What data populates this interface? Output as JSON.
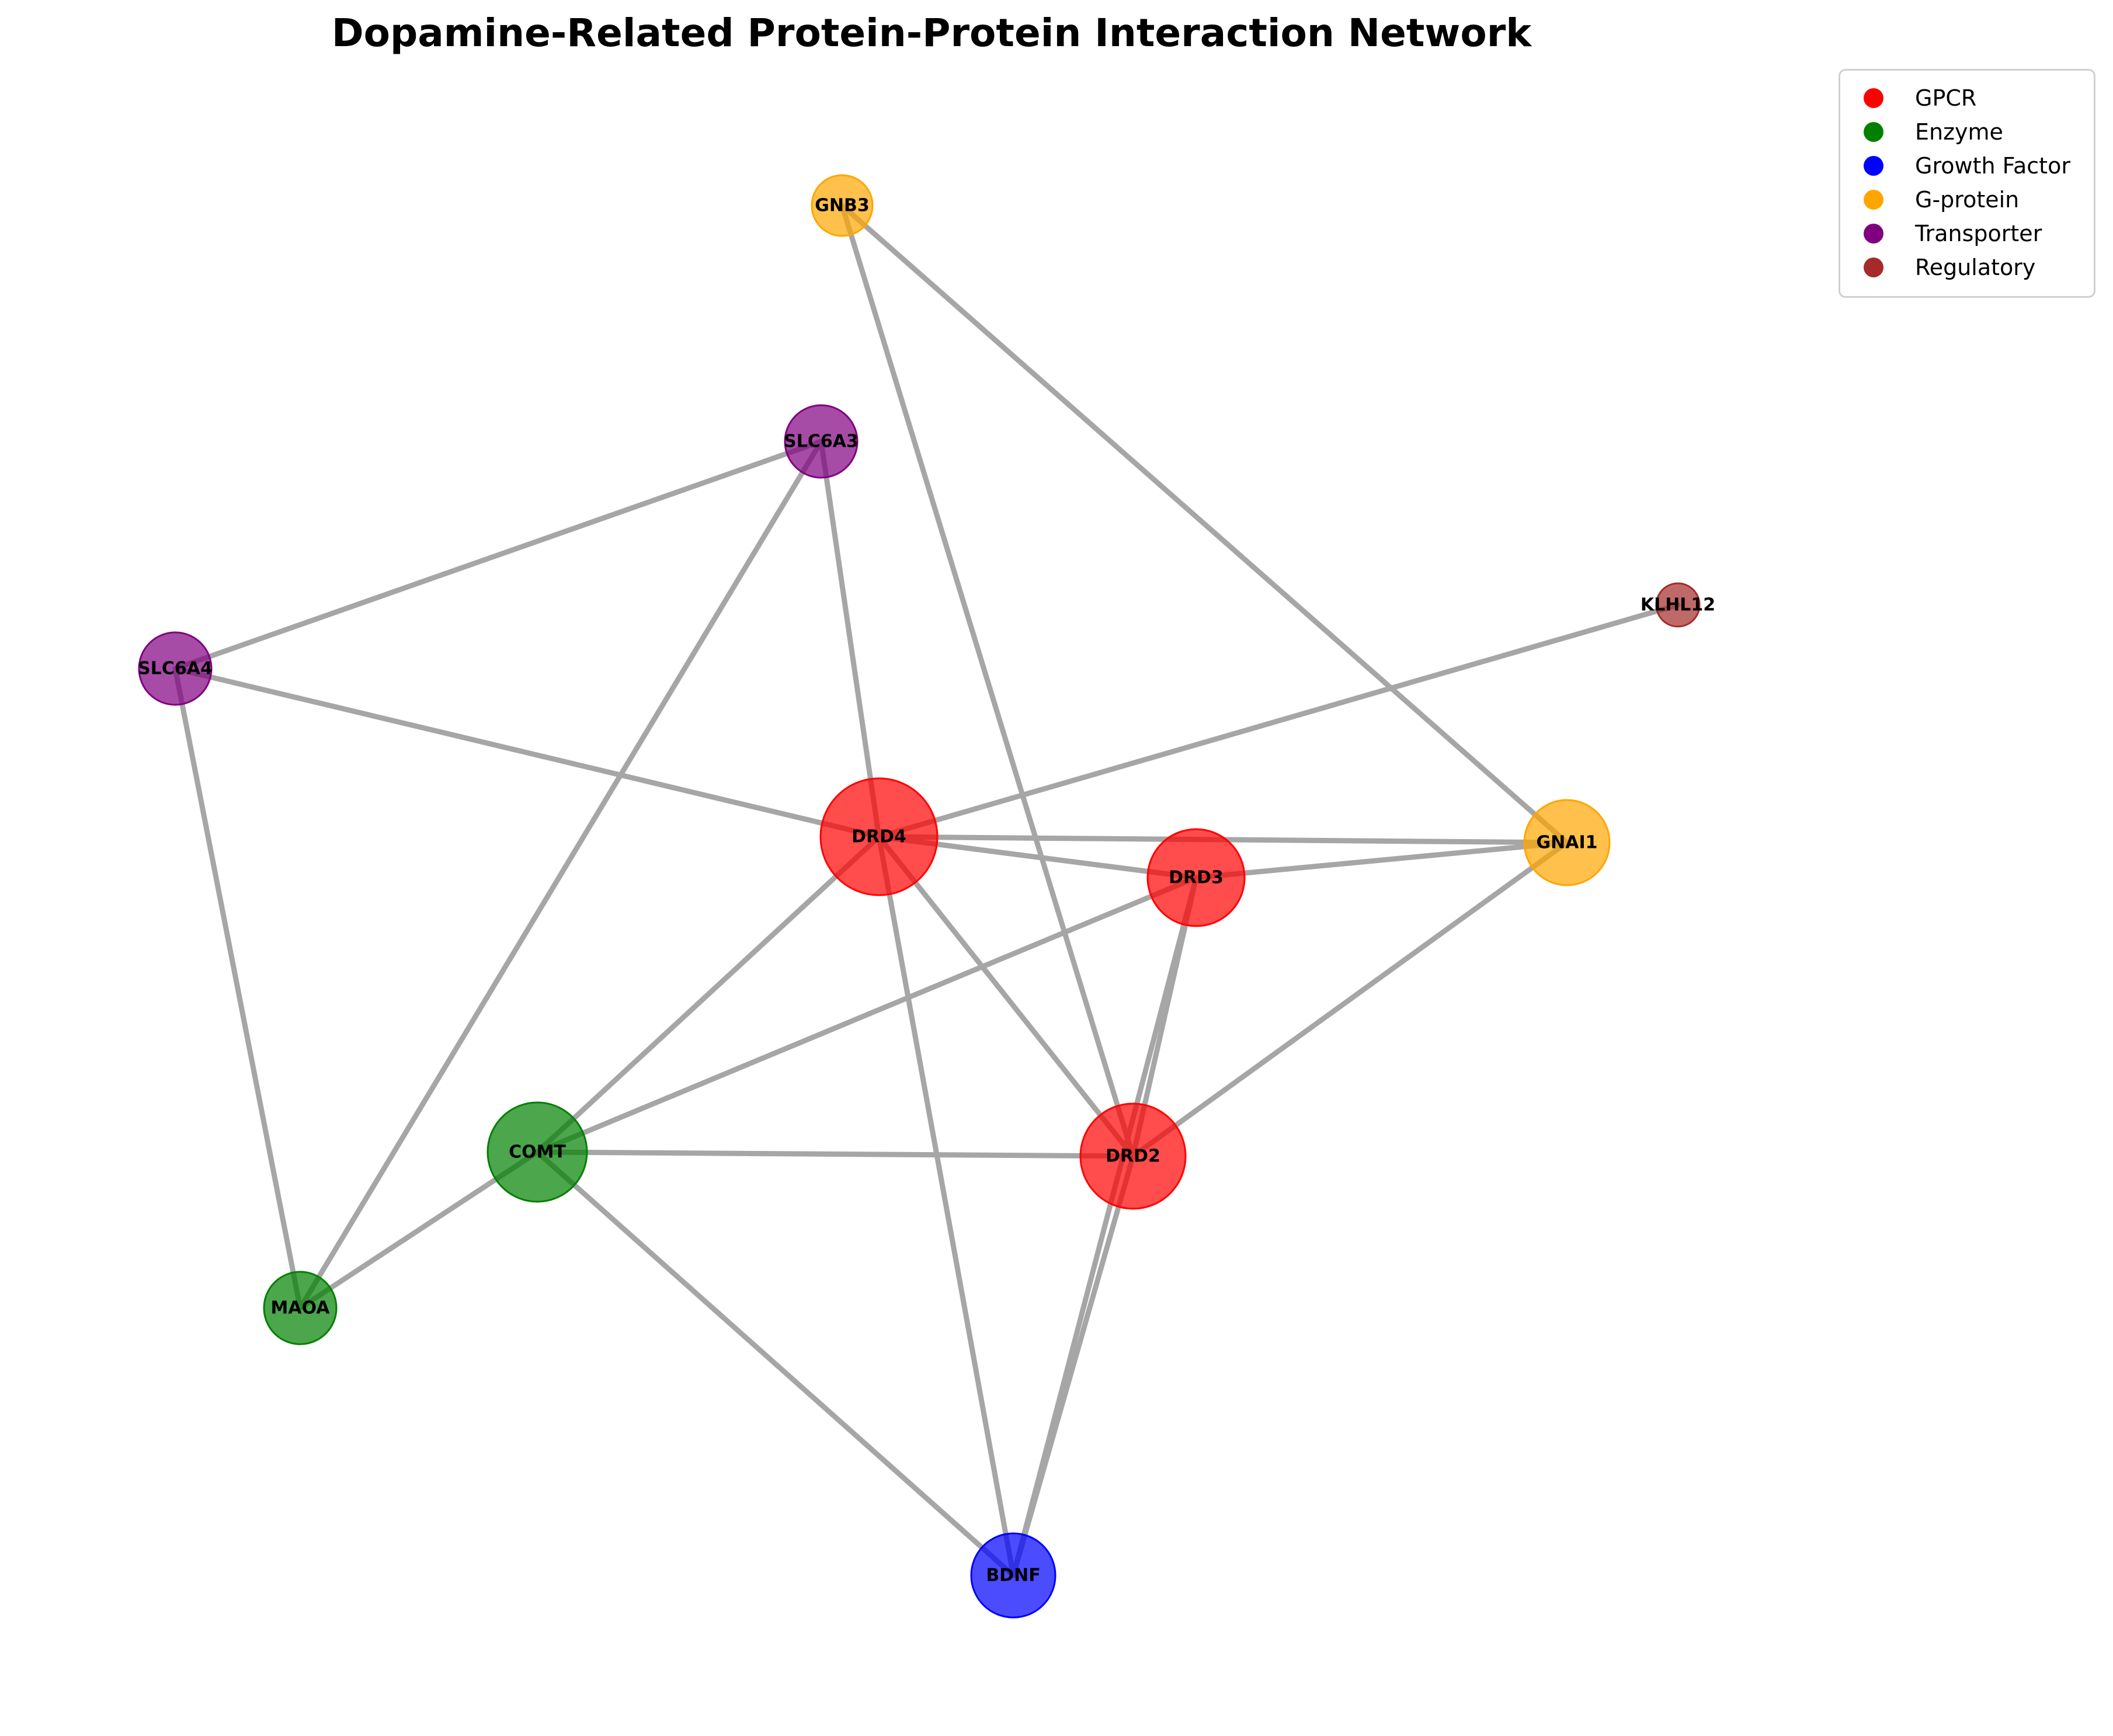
{
  "title": "Dopamine-Related Protein-Protein Interaction Network",
  "legend": [
    {
      "label": "GPCR",
      "color": "#ff0000"
    },
    {
      "label": "Enzyme",
      "color": "#008000"
    },
    {
      "label": "Growth Factor",
      "color": "#0000ff"
    },
    {
      "label": "G-protein",
      "color": "#ffa500"
    },
    {
      "label": "Transporter",
      "color": "#800080"
    },
    {
      "label": "Regulatory",
      "color": "#a52a2a"
    }
  ],
  "nodes": [
    {
      "id": "DRD4",
      "category": "GPCR",
      "color": "#ff0000"
    },
    {
      "id": "DRD3",
      "category": "GPCR",
      "color": "#ff0000"
    },
    {
      "id": "DRD2",
      "category": "GPCR",
      "color": "#ff0000"
    },
    {
      "id": "GNAI1",
      "category": "G-protein",
      "color": "#ffa500"
    },
    {
      "id": "GNB3",
      "category": "G-protein",
      "color": "#ffa500"
    },
    {
      "id": "SLC6A3",
      "category": "Transporter",
      "color": "#800080"
    },
    {
      "id": "SLC6A4",
      "category": "Transporter",
      "color": "#800080"
    },
    {
      "id": "KLHL12",
      "category": "Regulatory",
      "color": "#a52a2a"
    },
    {
      "id": "COMT",
      "category": "Enzyme",
      "color": "#008000"
    },
    {
      "id": "MAOA",
      "category": "Enzyme",
      "color": "#008000"
    },
    {
      "id": "BDNF",
      "category": "Growth Factor",
      "color": "#0000ff"
    }
  ],
  "edges": [
    [
      "GNB3",
      "GNAI1"
    ],
    [
      "GNB3",
      "DRD2"
    ],
    [
      "SLC6A3",
      "SLC6A4"
    ],
    [
      "SLC6A3",
      "DRD4"
    ],
    [
      "SLC6A3",
      "MAOA"
    ],
    [
      "SLC6A4",
      "DRD4"
    ],
    [
      "SLC6A4",
      "MAOA"
    ],
    [
      "KLHL12",
      "DRD4"
    ],
    [
      "DRD4",
      "GNAI1"
    ],
    [
      "DRD4",
      "DRD3"
    ],
    [
      "DRD4",
      "DRD2"
    ],
    [
      "DRD4",
      "COMT"
    ],
    [
      "DRD4",
      "BDNF"
    ],
    [
      "DRD3",
      "GNAI1"
    ],
    [
      "DRD3",
      "COMT"
    ],
    [
      "DRD3",
      "DRD2"
    ],
    [
      "DRD3",
      "BDNF"
    ],
    [
      "GNAI1",
      "DRD2"
    ],
    [
      "COMT",
      "DRD2"
    ],
    [
      "COMT",
      "MAOA"
    ],
    [
      "COMT",
      "BDNF"
    ],
    [
      "DRD2",
      "BDNF"
    ]
  ]
}
